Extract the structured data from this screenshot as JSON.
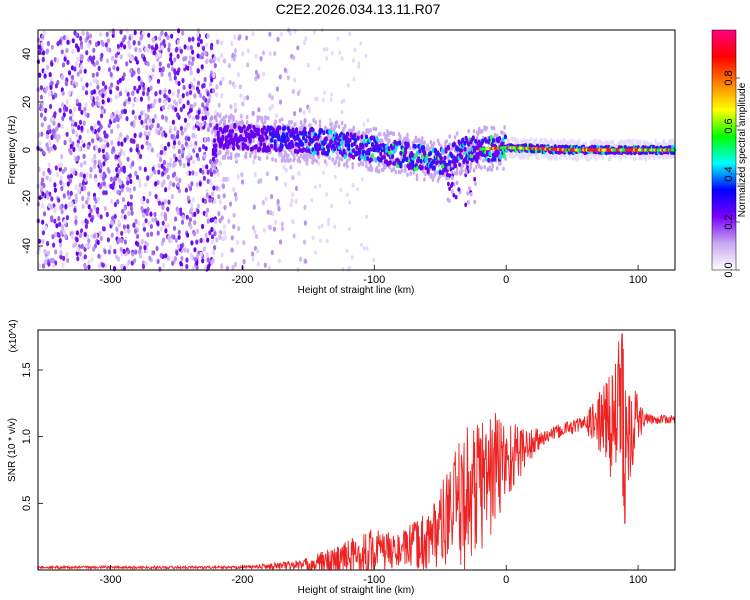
{
  "title": "C2E2.2026.034.13.11.R07",
  "chart_data": [
    {
      "type": "heatmap",
      "xlabel": "Height of straight line (km)",
      "ylabel": "Frequency (Hz)",
      "xlim": [
        -355,
        128
      ],
      "ylim": [
        -50,
        50
      ],
      "x_ticks": [
        -300,
        -200,
        -100,
        0,
        100
      ],
      "y_ticks": [
        -40,
        -20,
        0,
        20,
        40
      ],
      "colorbar": {
        "label": "Normalized spectral amplitude",
        "range": [
          0,
          1
        ],
        "ticks": [
          "0.0",
          "0.2",
          "0.4",
          "0.6",
          "0.8"
        ],
        "colors": [
          "#ffffff",
          "#c8a8f0",
          "#7a00ff",
          "#0000ff",
          "#00ffff",
          "#00ff00",
          "#ffff00",
          "#ff8000",
          "#ff0000",
          "#ff0080"
        ]
      },
      "center_track": [
        {
          "x": -220,
          "y": 6
        },
        {
          "x": -200,
          "y": 5
        },
        {
          "x": -150,
          "y": 4
        },
        {
          "x": -120,
          "y": 2
        },
        {
          "x": -100,
          "y": 0
        },
        {
          "x": -80,
          "y": -2
        },
        {
          "x": -60,
          "y": -4
        },
        {
          "x": -50,
          "y": -5
        },
        {
          "x": -30,
          "y": 0
        },
        {
          "x": 0,
          "y": 1
        },
        {
          "x": 50,
          "y": 0
        },
        {
          "x": 128,
          "y": 0
        }
      ]
    },
    {
      "type": "line",
      "xlabel": "Height of straight line (km)",
      "ylabel": "SNR (10 * v/v)",
      "y_multiplier": "(x10^4)",
      "xlim": [
        -355,
        128
      ],
      "ylim": [
        0,
        1.8
      ],
      "x_ticks": [
        -300,
        -200,
        -100,
        0,
        100
      ],
      "y_ticks": [
        "0.5",
        "1.0",
        "1.5"
      ],
      "series_color": "#ee2222",
      "trend": [
        {
          "x": -355,
          "y": 0.02
        },
        {
          "x": -200,
          "y": 0.02
        },
        {
          "x": -150,
          "y": 0.04
        },
        {
          "x": -120,
          "y": 0.08
        },
        {
          "x": -100,
          "y": 0.13
        },
        {
          "x": -80,
          "y": 0.15
        },
        {
          "x": -60,
          "y": 0.22
        },
        {
          "x": -45,
          "y": 0.38
        },
        {
          "x": -30,
          "y": 0.55
        },
        {
          "x": -15,
          "y": 0.7
        },
        {
          "x": 0,
          "y": 0.82
        },
        {
          "x": 15,
          "y": 0.92
        },
        {
          "x": 30,
          "y": 1.0
        },
        {
          "x": 45,
          "y": 1.06
        },
        {
          "x": 60,
          "y": 1.1
        },
        {
          "x": 80,
          "y": 1.12
        },
        {
          "x": 100,
          "y": 1.13
        },
        {
          "x": 128,
          "y": 1.13
        }
      ],
      "noise_envelope": [
        {
          "x": -355,
          "amp": 0.01
        },
        {
          "x": -200,
          "amp": 0.01
        },
        {
          "x": -155,
          "amp": 0.04
        },
        {
          "x": -105,
          "amp": 0.2
        },
        {
          "x": -80,
          "amp": 0.12
        },
        {
          "x": -50,
          "amp": 0.3
        },
        {
          "x": -30,
          "amp": 0.55
        },
        {
          "x": -10,
          "amp": 0.5
        },
        {
          "x": 10,
          "amp": 0.2
        },
        {
          "x": 30,
          "amp": 0.05
        },
        {
          "x": 60,
          "amp": 0.06
        },
        {
          "x": 75,
          "amp": 0.3
        },
        {
          "x": 88,
          "amp": 0.7
        },
        {
          "x": 95,
          "amp": 0.4
        },
        {
          "x": 105,
          "amp": 0.04
        },
        {
          "x": 128,
          "amp": 0.03
        }
      ],
      "peak": {
        "x": 88,
        "y": 1.77
      },
      "trough": {
        "x": 88,
        "y": 0.35
      }
    }
  ]
}
